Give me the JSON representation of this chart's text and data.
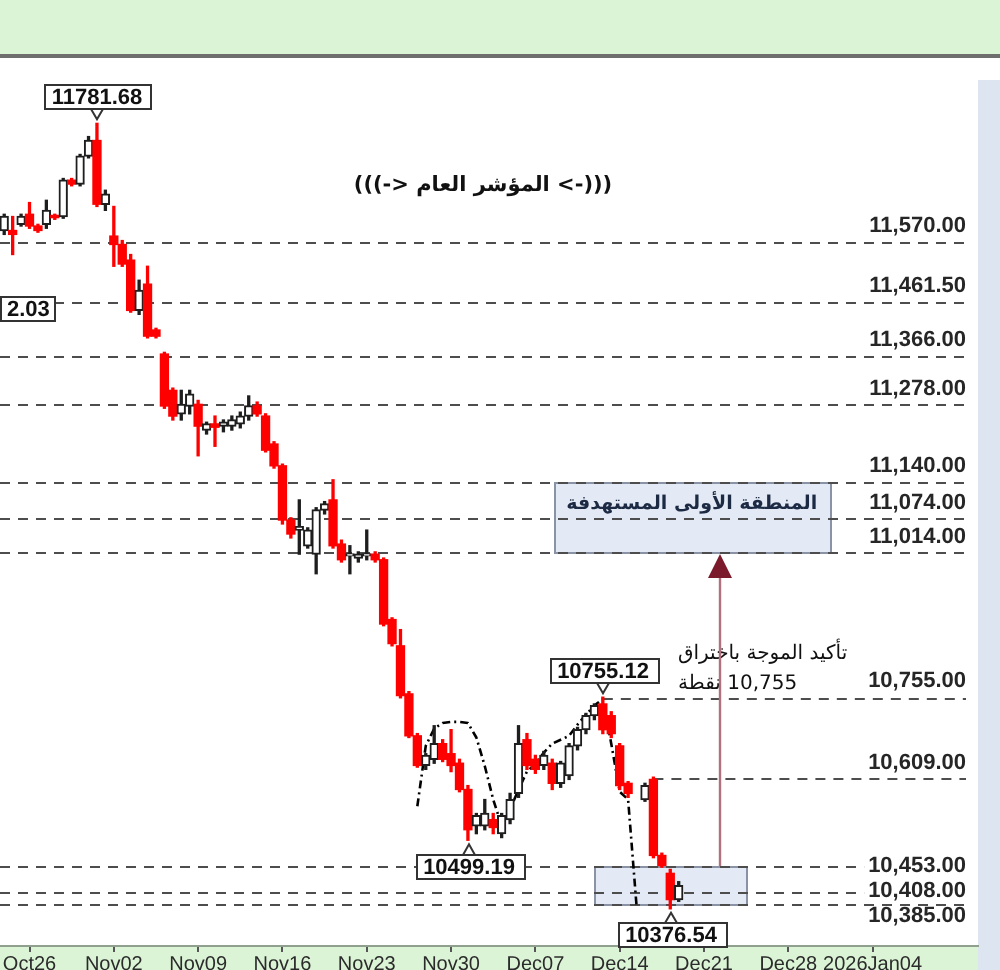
{
  "chart_data": {
    "type": "candlestick",
    "title": "(((-> المؤشر العام <-)))",
    "categories": [
      null,
      null,
      null,
      "Oct26",
      null,
      null,
      null,
      null,
      null,
      null,
      null,
      null,
      null,
      "Nov02",
      null,
      null,
      null,
      null,
      null,
      null,
      null,
      null,
      null,
      "Nov09",
      null,
      null,
      null,
      null,
      null,
      null,
      null,
      null,
      null,
      "Nov16",
      null,
      null,
      null,
      null,
      null,
      null,
      null,
      null,
      null,
      "Nov23",
      null,
      null,
      null,
      null,
      null,
      null,
      null,
      null,
      null,
      "Nov30",
      null,
      null,
      null,
      null,
      null,
      null,
      null,
      null,
      null,
      "Dec07",
      null,
      null,
      null,
      null,
      null,
      null,
      null,
      null,
      null,
      "Dec14",
      null,
      null,
      null,
      null,
      null,
      null,
      null,
      null,
      null,
      "Dec21",
      null,
      null,
      null,
      null,
      null,
      null,
      null,
      null,
      null,
      "Dec28",
      null,
      null,
      null,
      null,
      null,
      null,
      null,
      null,
      null,
      "2026Jan04",
      null,
      null,
      null,
      null,
      null,
      null,
      null,
      null,
      null,
      null,
      null,
      null
    ],
    "ohlc": [
      [
        11590,
        11619,
        11583,
        11615
      ],
      [
        11590,
        11615,
        11547,
        11583
      ],
      [
        11601,
        11619,
        11598,
        11615
      ],
      [
        11619,
        11640,
        11594,
        11598
      ],
      [
        11598,
        11601,
        11587,
        11590
      ],
      [
        11601,
        11644,
        11594,
        11626
      ],
      [
        11617,
        11619,
        11610,
        11613
      ],
      [
        11615,
        11683,
        11612,
        11680
      ],
      [
        11680,
        11683,
        11670,
        11673
      ],
      [
        11673,
        11726,
        11670,
        11723
      ],
      [
        11723,
        11758,
        11720,
        11751
      ],
      [
        11751,
        11781.68,
        11633,
        11637
      ],
      [
        11637,
        11662,
        11626,
        11655
      ],
      [
        11580,
        11633,
        11526,
        11565
      ],
      [
        11565,
        11572,
        11526,
        11530
      ],
      [
        11537,
        11547,
        11444,
        11447
      ],
      [
        11447,
        11501,
        11440,
        11483
      ],
      [
        11494,
        11526,
        11398,
        11401
      ],
      [
        11412,
        11415,
        11398,
        11401
      ],
      [
        11369,
        11372,
        11272,
        11276
      ],
      [
        11304,
        11308,
        11251,
        11258
      ],
      [
        11262,
        11304,
        11251,
        11279
      ],
      [
        11276,
        11304,
        11262,
        11297
      ],
      [
        11279,
        11286,
        11187,
        11240
      ],
      [
        11233,
        11247,
        11226,
        11244
      ],
      [
        11244,
        11258,
        11204,
        11238
      ],
      [
        11240,
        11251,
        11230,
        11247
      ],
      [
        11240,
        11258,
        11233,
        11251
      ],
      [
        11244,
        11265,
        11237,
        11258
      ],
      [
        11258,
        11294,
        11251,
        11276
      ],
      [
        11276,
        11283,
        11258,
        11262
      ],
      [
        11258,
        11262,
        11194,
        11197
      ],
      [
        11208,
        11212,
        11165,
        11169
      ],
      [
        11169,
        11172,
        11065,
        11072
      ],
      [
        11072,
        11076,
        11040,
        11047
      ],
      [
        11054,
        11108,
        11011,
        11060
      ],
      [
        11026,
        11058,
        11022,
        11054
      ],
      [
        11011,
        11094,
        10976,
        11090
      ],
      [
        11090,
        11105,
        11083,
        11101
      ],
      [
        11108,
        11144,
        11022,
        11026
      ],
      [
        11029,
        11036,
        10997,
        11001
      ],
      [
        11008,
        11026,
        10976,
        11011
      ],
      [
        11004,
        11015,
        10997,
        11011
      ],
      [
        11008,
        11054,
        11001,
        11011
      ],
      [
        11011,
        11015,
        10997,
        11001
      ],
      [
        11001,
        11004,
        10883,
        10886
      ],
      [
        10894,
        10897,
        10847,
        10851
      ],
      [
        10847,
        10876,
        10754,
        10758
      ],
      [
        10761,
        10765,
        10683,
        10686
      ],
      [
        10686,
        10690,
        10630,
        10633
      ],
      [
        10633,
        10654,
        10626,
        10651
      ],
      [
        10644,
        10704,
        10637,
        10672
      ],
      [
        10672,
        10679,
        10640,
        10644
      ],
      [
        10654,
        10697,
        10622,
        10633
      ],
      [
        10637,
        10644,
        10586,
        10590
      ],
      [
        10590,
        10597,
        10499.19,
        10518
      ],
      [
        10525,
        10547,
        10511,
        10543
      ],
      [
        10525,
        10572,
        10518,
        10547
      ],
      [
        10536,
        10547,
        10511,
        10522
      ],
      [
        10511,
        10547,
        10504,
        10543
      ],
      [
        10536,
        10583,
        10529,
        10572
      ],
      [
        10583,
        10704,
        10576,
        10672
      ],
      [
        10679,
        10690,
        10626,
        10633
      ],
      [
        10644,
        10651,
        10619,
        10626
      ],
      [
        10633,
        10658,
        10626,
        10651
      ],
      [
        10637,
        10644,
        10590,
        10601
      ],
      [
        10601,
        10640,
        10594,
        10637
      ],
      [
        10615,
        10672,
        10608,
        10668
      ],
      [
        10668,
        10701,
        10661,
        10697
      ],
      [
        10697,
        10726,
        10690,
        10722
      ],
      [
        10722,
        10743,
        10715,
        10740
      ],
      [
        10743,
        10755.12,
        10690,
        10697
      ],
      [
        10722,
        10729,
        10683,
        10690
      ],
      [
        10668,
        10672,
        10590,
        10597
      ],
      [
        10601,
        10604,
        10576,
        10583
      ],
      null,
      [
        10572,
        10601,
        10569,
        10597
      ],
      [
        10608,
        10612,
        10468,
        10472
      ],
      [
        10472,
        10476,
        10451,
        10454
      ],
      [
        10440,
        10447,
        10376.54,
        10393
      ],
      [
        10393,
        10425,
        10390,
        10418
      ],
      null,
      null,
      null,
      null,
      null,
      null,
      null,
      null,
      null,
      null,
      null,
      null,
      null,
      null,
      null,
      null,
      null,
      null,
      null,
      null,
      null,
      null,
      null,
      null,
      null,
      null,
      null,
      null,
      null,
      null,
      null,
      null,
      null,
      null,
      null
    ],
    "colors": [
      "#1e1e1e",
      "#ff0000",
      "#1e1e1e",
      "#ff0000",
      "#ff0000",
      "#1e1e1e",
      "#ff0000",
      "#1e1e1e",
      "#ff0000",
      "#1e1e1e",
      "#1e1e1e",
      "#ff0000",
      "#1e1e1e",
      "#ff0000",
      "#ff0000",
      "#ff0000",
      "#1e1e1e",
      "#ff0000",
      "#ff0000",
      "#ff0000",
      "#ff0000",
      "#1e1e1e",
      "#1e1e1e",
      "#ff0000",
      "#1e1e1e",
      "#ff0000",
      "#1e1e1e",
      "#1e1e1e",
      "#1e1e1e",
      "#1e1e1e",
      "#ff0000",
      "#ff0000",
      "#ff0000",
      "#ff0000",
      "#ff0000",
      "#1e1e1e",
      "#1e1e1e",
      "#1e1e1e",
      "#1e1e1e",
      "#ff0000",
      "#ff0000",
      "#1e1e1e",
      "#1e1e1e",
      "#1e1e1e",
      "#ff0000",
      "#ff0000",
      "#ff0000",
      "#ff0000",
      "#ff0000",
      "#ff0000",
      "#1e1e1e",
      "#1e1e1e",
      "#ff0000",
      "#ff0000",
      "#ff0000",
      "#ff0000",
      "#1e1e1e",
      "#1e1e1e",
      "#ff0000",
      "#1e1e1e",
      "#1e1e1e",
      "#1e1e1e",
      "#ff0000",
      "#ff0000",
      "#1e1e1e",
      "#ff0000",
      "#1e1e1e",
      "#1e1e1e",
      "#1e1e1e",
      "#1e1e1e",
      "#1e1e1e",
      "#ff0000",
      "#ff0000",
      "#ff0000",
      "#ff0000",
      null,
      "#1e1e1e",
      "#ff0000",
      "#ff0000",
      "#ff0000",
      "#1e1e1e",
      null,
      null,
      null,
      null,
      null,
      null,
      null,
      null,
      null,
      null,
      null,
      null,
      null,
      null,
      null,
      null,
      null,
      null,
      null,
      null,
      null,
      null,
      null,
      null,
      null,
      null,
      null,
      null,
      null,
      null,
      null,
      null,
      null,
      null,
      null
    ],
    "series": [
      {
        "type": "line",
        "color": "#000000",
        "line_style": "dashed",
        "values": [
          null,
          null,
          null,
          null,
          null,
          null,
          null,
          null,
          null,
          null,
          null,
          null,
          null,
          null,
          null,
          null,
          null,
          null,
          null,
          null,
          null,
          null,
          null,
          null,
          null,
          null,
          null,
          null,
          null,
          null,
          null,
          null,
          null,
          null,
          null,
          null,
          null,
          null,
          null,
          null,
          null,
          null,
          null,
          null,
          null,
          null,
          null,
          null,
          null,
          10560,
          10668,
          10699,
          10709,
          10711,
          10711,
          10709,
          10683,
          10632,
          10572,
          10525,
          10554,
          10590,
          10622,
          10636,
          10656,
          10672,
          10679,
          10686,
          10706,
          10724,
          10740,
          10752,
          10672,
          10586,
          10572,
          10382,
          null,
          null,
          null,
          null,
          null,
          null,
          null,
          null,
          null,
          null,
          null,
          null,
          null,
          null,
          null,
          null,
          null,
          null,
          null,
          null,
          null,
          null,
          null,
          null,
          null,
          null,
          null,
          null,
          null,
          null,
          null,
          null,
          null,
          null,
          null,
          null,
          null,
          null,
          null,
          null
        ]
      }
    ],
    "ylim": [
      10310,
      11895
    ],
    "tick_labels": "x",
    "grid": false,
    "legend": false,
    "ref_lines": [
      {
        "axis": "y",
        "value": 11570,
        "label": "11,570.00",
        "color": "#4d4d4d",
        "line_style": "dashed"
      },
      {
        "axis": "y",
        "value": 11461.5,
        "label": "11,461.50",
        "color": "#4d4d4d",
        "line_style": "dashed"
      },
      {
        "axis": "y",
        "value": 11366,
        "label": "11,366.00",
        "color": "#4d4d4d",
        "line_style": "dashed"
      },
      {
        "axis": "y",
        "value": 11278,
        "label": "11,278.00",
        "color": "#4d4d4d",
        "line_style": "dashed"
      },
      {
        "axis": "y",
        "value": 11140,
        "label": "11,140.00",
        "color": "#4d4d4d",
        "line_style": "dashed"
      },
      {
        "axis": "y",
        "value": 11074,
        "label": "11,074.00",
        "color": "#4d4d4d",
        "line_style": "dashed"
      },
      {
        "axis": "y",
        "value": 11014,
        "label": "11,014.00",
        "color": "#4d4d4d",
        "line_style": "dashed"
      },
      {
        "axis": "y",
        "value": 10755,
        "label": "10,755.00",
        "color": "#4d4d4d",
        "line_style": "dashed"
      },
      {
        "axis": "y",
        "value": 10609,
        "label": "10,609.00",
        "color": "#4d4d4d",
        "line_style": "dashed"
      },
      {
        "axis": "y",
        "value": 10453,
        "label": "10,453.00",
        "color": "#4d4d4d",
        "line_style": "dashed"
      },
      {
        "axis": "y",
        "value": 10408,
        "label": "10,408.00",
        "color": "#4d4d4d",
        "line_style": "dashed"
      },
      {
        "axis": "y",
        "value": 10385,
        "label": "10,385.00",
        "color": "#4d4d4d",
        "line_style": "dashed"
      }
    ],
    "bands": [
      {
        "axis": "y",
        "from": 11014,
        "to": 11140,
        "label": "المنطقة الأولى المستهدفة",
        "color": "#e3eaf5"
      },
      {
        "axis": "y",
        "from": 10385,
        "to": 10453,
        "color": "#e3eaf5"
      }
    ],
    "annotations": [
      {
        "text": "11781.68",
        "y": 11781.68
      },
      "2.03",
      {
        "text": "10755.12",
        "y": 10755.12
      },
      "تأكيد الموجة باختراق 10,755 نقطة",
      {
        "text": "10499.19",
        "y": 10499.19
      },
      {
        "text": "10376.54",
        "y": 10376.54
      }
    ]
  }
}
